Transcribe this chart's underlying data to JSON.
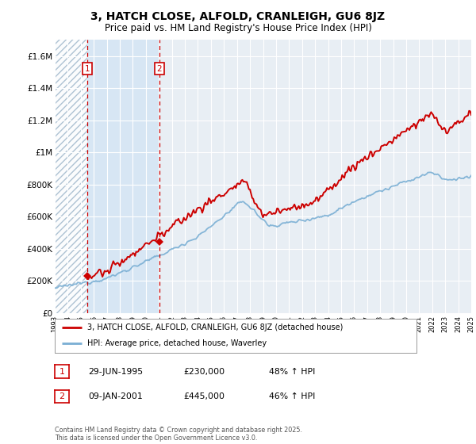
{
  "title": "3, HATCH CLOSE, ALFOLD, CRANLEIGH, GU6 8JZ",
  "subtitle": "Price paid vs. HM Land Registry's House Price Index (HPI)",
  "ylim": [
    0,
    1700000
  ],
  "yticks": [
    0,
    200000,
    400000,
    600000,
    800000,
    1000000,
    1200000,
    1400000,
    1600000
  ],
  "ytick_labels": [
    "£0",
    "£200K",
    "£400K",
    "£600K",
    "£800K",
    "£1M",
    "£1.2M",
    "£1.4M",
    "£1.6M"
  ],
  "x_start_year": 1993,
  "x_end_year": 2025,
  "vline1_year": 1995.49,
  "vline2_year": 2001.03,
  "marker1_price": 230000,
  "marker2_price": 445000,
  "property_color": "#cc0000",
  "hpi_color": "#7aafd4",
  "legend_property": "3, HATCH CLOSE, ALFOLD, CRANLEIGH, GU6 8JZ (detached house)",
  "legend_hpi": "HPI: Average price, detached house, Waverley",
  "transaction1_date": "29-JUN-1995",
  "transaction1_price": "£230,000",
  "transaction1_hpi": "48% ↑ HPI",
  "transaction2_date": "09-JAN-2001",
  "transaction2_price": "£445,000",
  "transaction2_hpi": "46% ↑ HPI",
  "footer": "Contains HM Land Registry data © Crown copyright and database right 2025.\nThis data is licensed under the Open Government Licence v3.0.",
  "background_color": "#ffffff",
  "plot_bg_color": "#e8eef4"
}
